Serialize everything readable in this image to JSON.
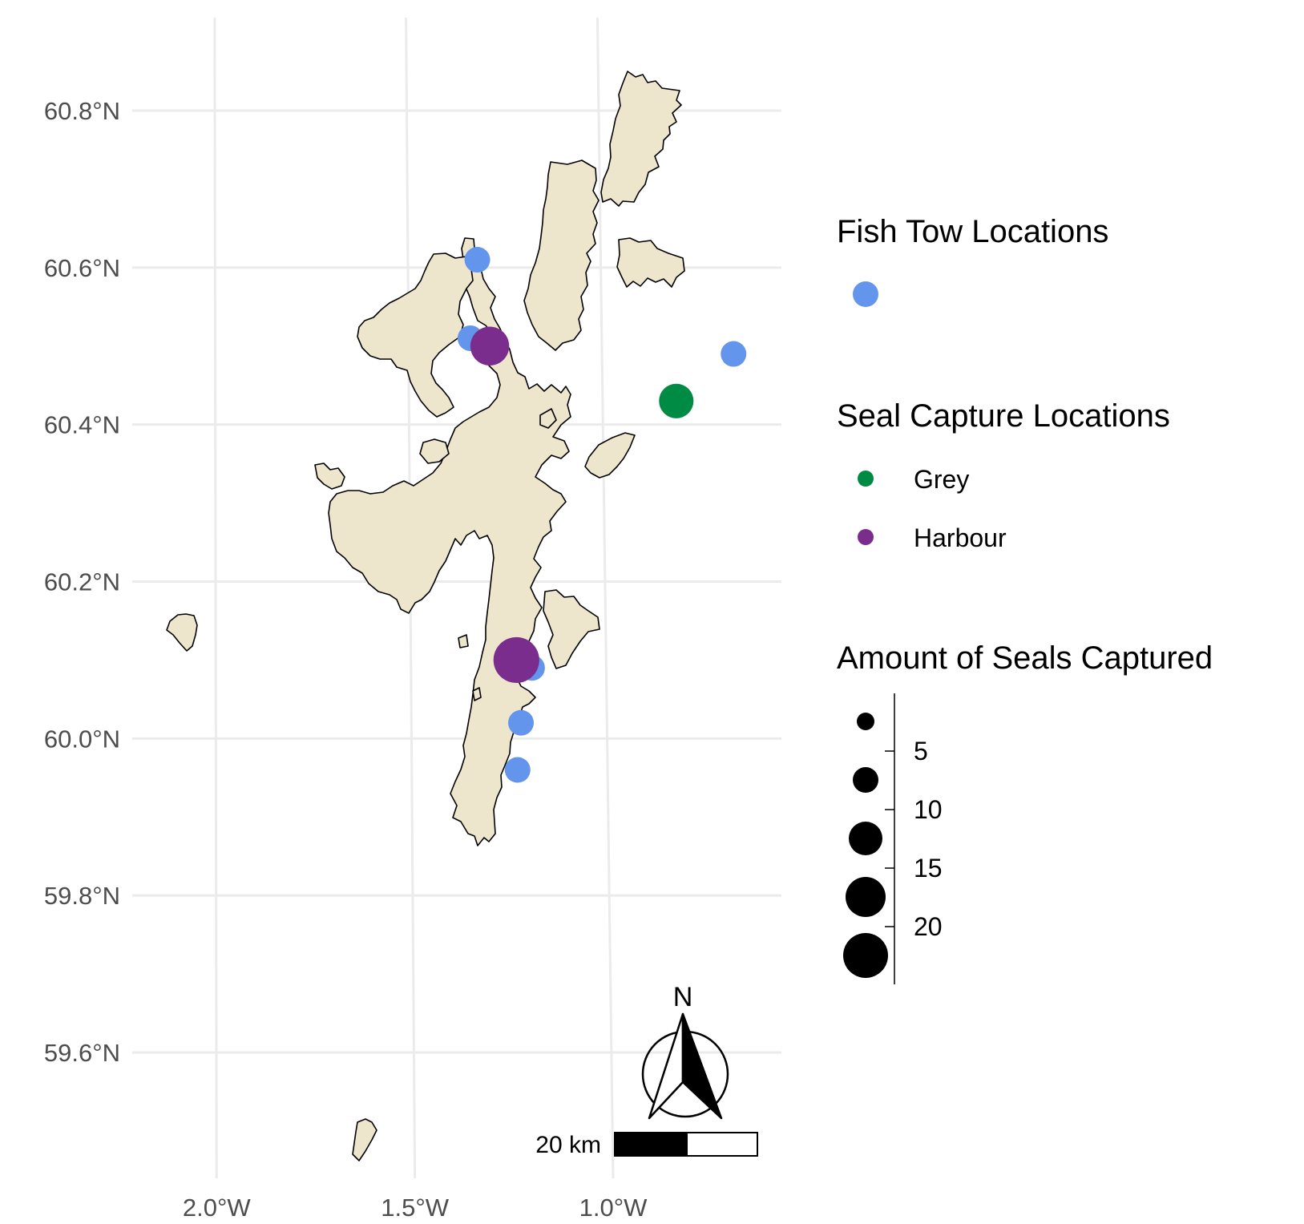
{
  "map": {
    "axis": {
      "lat_labels": [
        "60.8°N",
        "60.6°N",
        "60.4°N",
        "60.2°N",
        "60.0°N",
        "59.8°N",
        "59.6°N"
      ],
      "lat_values": [
        60.8,
        60.6,
        60.4,
        60.2,
        60.0,
        59.8,
        59.6
      ],
      "lon_labels": [
        "2.0°W",
        "1.5°W",
        "1.0°W"
      ],
      "lon_values": [
        -2.0,
        -1.5,
        -1.0
      ]
    },
    "colors": {
      "land": "#ede6cc",
      "fish_tow": "#6495ed",
      "grey_seal": "#008b45",
      "harbour_seal": "#7b2d8e",
      "grid": "#ebebeb"
    },
    "fish_tows": [
      {
        "lon": -1.32,
        "lat": 60.61
      },
      {
        "lon": -1.34,
        "lat": 60.51
      },
      {
        "lon": -1.19,
        "lat": 60.09
      },
      {
        "lon": -1.22,
        "lat": 60.02
      },
      {
        "lon": -1.23,
        "lat": 59.96
      },
      {
        "lon": -0.66,
        "lat": 60.49
      }
    ],
    "seal_captures": [
      {
        "species": "Harbour",
        "lon": -1.29,
        "lat": 60.5,
        "count": 14
      },
      {
        "species": "Harbour",
        "lon": -1.23,
        "lat": 60.1,
        "count": 22
      },
      {
        "species": "Grey",
        "lon": -0.81,
        "lat": 60.43,
        "count": 10
      }
    ],
    "north_arrow": {
      "label": "N"
    },
    "scale_bar": {
      "label": "20 km"
    }
  },
  "legend": {
    "fish_title": "Fish Tow Locations",
    "seal_title": "Seal Capture Locations",
    "seal_items": [
      {
        "label": "Grey",
        "color": "#008b45"
      },
      {
        "label": "Harbour",
        "color": "#7b2d8e"
      }
    ],
    "size_title": "Amount of Seals Captured",
    "size_labels": [
      "5",
      "10",
      "15",
      "20"
    ]
  }
}
